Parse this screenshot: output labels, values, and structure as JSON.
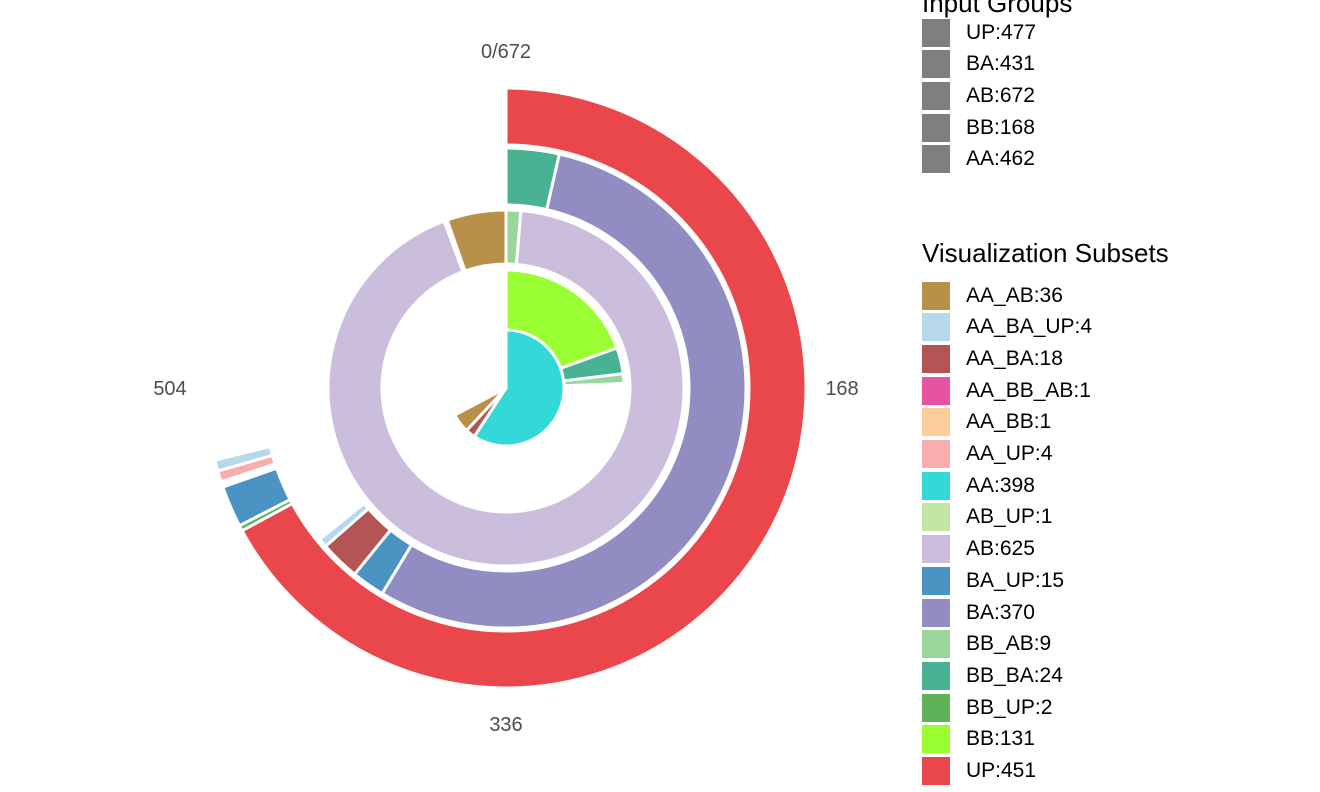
{
  "chart_data": {
    "type": "nested-donut",
    "total": 672,
    "ticks": [
      "0/672",
      "168",
      "336",
      "504"
    ],
    "colors": {
      "AA_AB": "#b8904a",
      "AA_BA_UP": "#b7d8ea",
      "AA_BA": "#b45555",
      "AA_BB_AB": "#e8539f",
      "AA_BB": "#fbcd9c",
      "AA_UP": "#f9aeae",
      "AA": "#33d8d8",
      "AB_UP": "#c3e6a2",
      "AB": "#cbbedd",
      "BA_UP": "#4b93c3",
      "BA": "#918cc1",
      "BB_AB": "#9ad59c",
      "BB_BA": "#49b293",
      "BB_UP": "#5fb158",
      "BB": "#99ff33",
      "UP": "#e9474b"
    },
    "rings": [
      {
        "group": "BB",
        "segments": [
          {
            "subset": "BB",
            "start": 0,
            "value": 131
          },
          {
            "subset": "BB_BA",
            "start": 131,
            "value": 24
          },
          {
            "subset": "BB_AB",
            "start": 155,
            "value": 9
          },
          {
            "subset": "BB_UP",
            "start": 164,
            "value": 2
          }
        ]
      },
      {
        "group": "AA",
        "segments": [
          {
            "subset": "AA",
            "start": 0,
            "value": 398
          },
          {
            "subset": "AA_BA",
            "start": 398,
            "value": 18
          },
          {
            "subset": "AA_AB",
            "start": 416,
            "value": 36
          }
        ]
      },
      {
        "group": "AB",
        "segments": [
          {
            "subset": "BB_AB",
            "start": 0,
            "value": 9
          },
          {
            "subset": "AB",
            "start": 9,
            "value": 625
          },
          {
            "subset": "AA_AB",
            "start": 636,
            "value": 36
          }
        ]
      },
      {
        "group": "BA",
        "segments": [
          {
            "subset": "BB_BA",
            "start": 0,
            "value": 24
          },
          {
            "subset": "BA",
            "start": 24,
            "value": 370
          },
          {
            "subset": "BA_UP",
            "start": 394,
            "value": 15
          },
          {
            "subset": "AA_BA",
            "start": 409,
            "value": 18
          },
          {
            "subset": "AA_BA_UP",
            "start": 427,
            "value": 4
          }
        ]
      },
      {
        "group": "UP",
        "segments": [
          {
            "subset": "UP",
            "start": 0,
            "value": 451
          },
          {
            "subset": "BB_UP",
            "start": 451,
            "value": 2
          },
          {
            "subset": "BA_UP",
            "start": 453,
            "value": 15
          },
          {
            "subset": "AA_UP",
            "start": 470,
            "value": 4
          },
          {
            "subset": "AA_BA_UP",
            "start": 474,
            "value": 4
          }
        ]
      }
    ],
    "legend_input_groups": {
      "title": "Input Groups",
      "items": [
        "UP:477",
        "BA:431",
        "AB:672",
        "BB:168",
        "AA:462"
      ],
      "color": "#7f7f7f"
    },
    "legend_subsets": {
      "title": "Visualization Subsets",
      "items": [
        {
          "label": "AA_AB:36",
          "key": "AA_AB"
        },
        {
          "label": "AA_BA_UP:4",
          "key": "AA_BA_UP"
        },
        {
          "label": "AA_BA:18",
          "key": "AA_BA"
        },
        {
          "label": "AA_BB_AB:1",
          "key": "AA_BB_AB"
        },
        {
          "label": "AA_BB:1",
          "key": "AA_BB"
        },
        {
          "label": "AA_UP:4",
          "key": "AA_UP"
        },
        {
          "label": "AA:398",
          "key": "AA"
        },
        {
          "label": "AB_UP:1",
          "key": "AB_UP"
        },
        {
          "label": "AB:625",
          "key": "AB"
        },
        {
          "label": "BA_UP:15",
          "key": "BA_UP"
        },
        {
          "label": "BA:370",
          "key": "BA"
        },
        {
          "label": "BB_AB:9",
          "key": "BB_AB"
        },
        {
          "label": "BB_BA:24",
          "key": "BB_BA"
        },
        {
          "label": "BB_UP:2",
          "key": "BB_UP"
        },
        {
          "label": "BB:131",
          "key": "BB"
        },
        {
          "label": "UP:451",
          "key": "UP"
        }
      ]
    }
  }
}
